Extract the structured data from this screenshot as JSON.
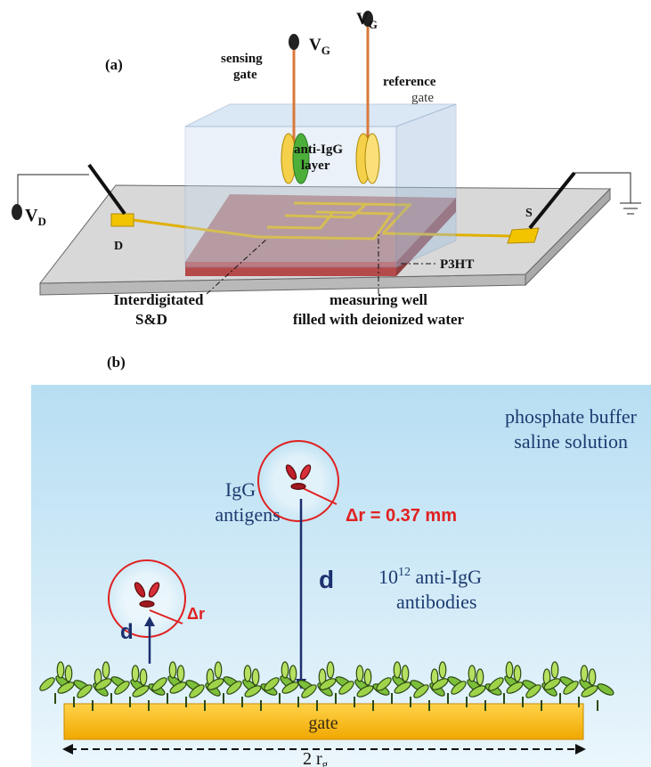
{
  "panel_a": {
    "label": "(a)",
    "sensing_gate": [
      "sensing",
      "gate"
    ],
    "reference_gate": [
      "reference",
      "gate"
    ],
    "vg_left": {
      "main": "V",
      "sub": "G"
    },
    "vg_right": {
      "main": "V",
      "sub": "G"
    },
    "layer": [
      "anti-IgG",
      "layer"
    ],
    "vd": {
      "main": "V",
      "sub": "D"
    },
    "drain": "D",
    "source": "S",
    "p3ht": "P3HT",
    "interdigitated": [
      "Interdigitated",
      "S&D"
    ],
    "well": [
      "measuring well",
      "filled with deionized water"
    ]
  },
  "panel_b": {
    "label": "(b)",
    "solution": [
      "phosphate buffer",
      "saline solution"
    ],
    "antigens": [
      "IgG",
      "antigens"
    ],
    "delta_r_value": "Δr = 0.37 mm",
    "distance_far": "d",
    "antibodies": {
      "base": "10",
      "exp": "12",
      "rest": " anti-IgG",
      "line2": "antibodies"
    },
    "distance_near": "d",
    "delta_r": "Δr",
    "gate": "gate",
    "gate_size": {
      "main": "2 r",
      "sub": "g"
    }
  }
}
